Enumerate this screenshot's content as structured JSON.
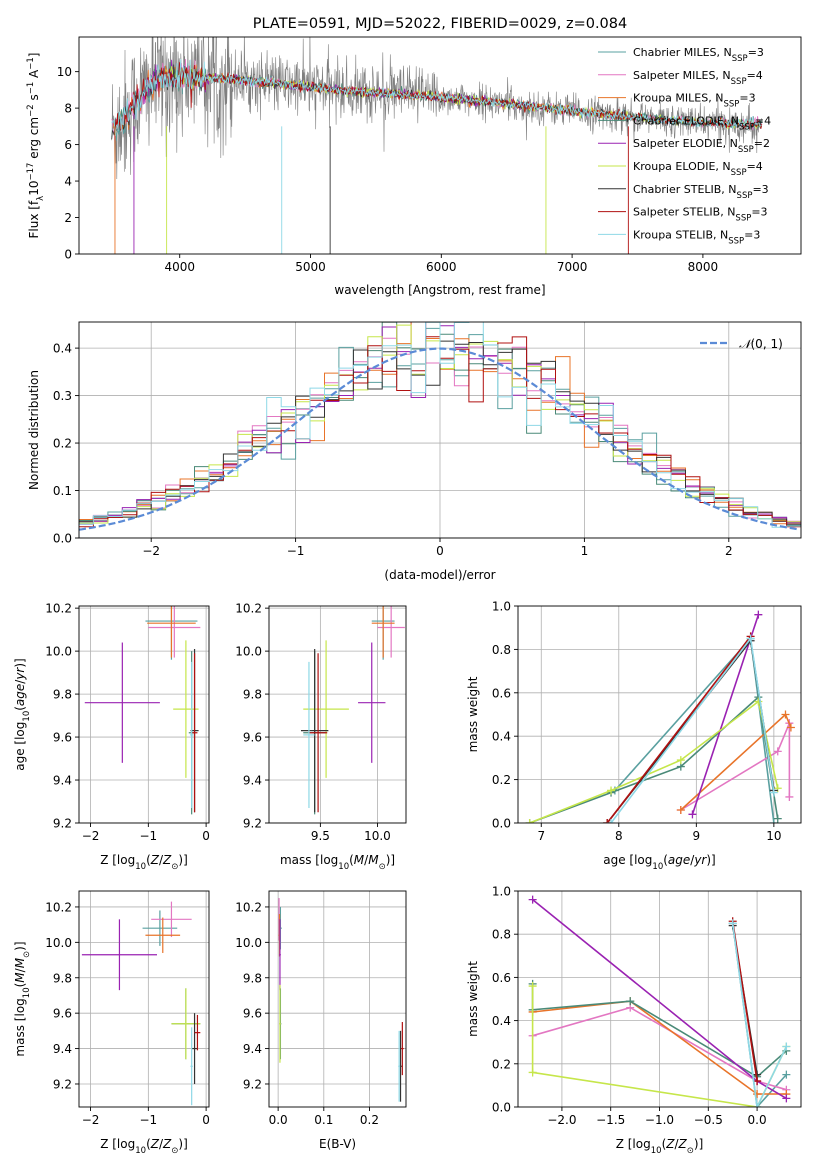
{
  "colors": {
    "Chabrier MILES": "#5aa0a0",
    "Salpeter MILES": "#e377c2",
    "Kroupa MILES": "#e8742a",
    "Chabrier ELODIE": "#4a8a78",
    "Salpeter ELODIE": "#9a22b2",
    "Kroupa ELODIE": "#c6e64a",
    "Chabrier STELIB": "#333333",
    "Salpeter STELIB": "#b01010",
    "Kroupa STELIB": "#8ed8e6",
    "gauss": "#5b8bd6",
    "grid": "#b0b0b0",
    "spectrum": "#7f7f7f"
  },
  "chart_data": [
    {
      "id": "spectrum",
      "type": "line",
      "title": "PLATE=0591, MJD=52022, FIBERID=0029, z=0.084",
      "xlabel": "wavelength [Angstrom, rest frame]",
      "ylabel": "Flux [f_λ 10^-17 erg cm^-2 s^-1 A^-1]",
      "xlim": [
        3230,
        8750
      ],
      "ylim": [
        0,
        11.9
      ],
      "xticks": [
        4000,
        5000,
        6000,
        7000,
        8000
      ],
      "yticks": [
        0,
        2,
        4,
        6,
        8,
        10
      ],
      "grid": false,
      "legend_position": "top-right",
      "legend": [
        "Chabrier MILES, N_SSP=3",
        "Salpeter MILES, N_SSP=4",
        "Kroupa MILES, N_SSP=3",
        "Chabrier ELODIE, N_SSP=4",
        "Salpeter ELODIE, N_SSP=2",
        "Kroupa ELODIE, N_SSP=4",
        "Chabrier STELIB, N_SSP=3",
        "Salpeter STELIB, N_SSP=3",
        "Kroupa STELIB, N_SSP=3"
      ],
      "continuum": {
        "x": [
          3500,
          3700,
          3800,
          3900,
          4100,
          4400,
          4800,
          5200,
          5600,
          6000,
          6400,
          6800,
          7200,
          7600,
          8000,
          8400
        ],
        "y": [
          6.8,
          8.6,
          9.4,
          9.7,
          9.7,
          9.6,
          9.3,
          9.0,
          8.8,
          8.6,
          8.3,
          8.0,
          7.7,
          7.4,
          7.2,
          7.1
        ]
      }
    },
    {
      "id": "residual-histogram",
      "type": "histogram",
      "xlabel": "(data-model)/error",
      "ylabel": "Normed distribution",
      "xlim": [
        -2.5,
        2.5
      ],
      "ylim": [
        0,
        0.455
      ],
      "xticks": [
        -2,
        -1,
        0,
        1,
        2
      ],
      "yticks": [
        0.0,
        0.1,
        0.2,
        0.3,
        0.4
      ],
      "grid": true,
      "legend_position": "top-right",
      "legend": [
        "𝒩(0, 1)"
      ],
      "bin_width": 0.1,
      "reference_curve": "normal pdf mean 0 sigma 1 (dashed)"
    },
    {
      "id": "age-vs-z",
      "type": "errorbar",
      "xlabel": "Z [log10(Z/Z⊙)]",
      "ylabel": "age [log10(age/yr)]",
      "xlim": [
        -2.2,
        0.05
      ],
      "ylim": [
        9.2,
        10.21
      ],
      "xticks": [
        -2,
        -1,
        0
      ],
      "yticks": [
        9.2,
        9.4,
        9.6,
        9.8,
        10.0,
        10.2
      ],
      "grid": true,
      "points": [
        {
          "model": "Chabrier MILES",
          "x": -0.6,
          "xerr": 0.45,
          "y": 10.14,
          "yerr": 0.18
        },
        {
          "model": "Salpeter MILES",
          "x": -0.55,
          "xerr": 0.45,
          "y": 10.11,
          "yerr": 0.14
        },
        {
          "model": "Kroupa MILES",
          "x": -0.6,
          "xerr": 0.42,
          "y": 10.13,
          "yerr": 0.16
        },
        {
          "model": "Chabrier ELODIE",
          "x": -0.25,
          "xerr": 0.05,
          "y": 9.62,
          "yerr": 0.38
        },
        {
          "model": "Salpeter ELODIE",
          "x": -1.45,
          "xerr": 0.65,
          "y": 9.76,
          "yerr": 0.28
        },
        {
          "model": "Kroupa ELODIE",
          "x": -0.35,
          "xerr": 0.22,
          "y": 9.73,
          "yerr": 0.32
        },
        {
          "model": "Chabrier STELIB",
          "x": -0.2,
          "xerr": 0.07,
          "y": 9.63,
          "yerr": 0.38
        },
        {
          "model": "Salpeter STELIB",
          "x": -0.2,
          "xerr": 0.05,
          "y": 9.62,
          "yerr": 0.37
        },
        {
          "model": "Kroupa STELIB",
          "x": -0.25,
          "xerr": 0.03,
          "y": 9.61,
          "yerr": 0.34
        }
      ]
    },
    {
      "id": "age-vs-mass",
      "type": "errorbar",
      "xlabel": "mass [log10(M/M⊙)]",
      "ylabel": "",
      "xlim": [
        9.05,
        10.25
      ],
      "ylim": [
        9.2,
        10.21
      ],
      "xticks": [
        9.5,
        10.0
      ],
      "yticks": [
        9.2,
        9.4,
        9.6,
        9.8,
        10.0,
        10.2
      ],
      "grid": true,
      "points": [
        {
          "model": "Chabrier MILES",
          "x": 10.05,
          "xerr": 0.1,
          "y": 10.14,
          "yerr": 0.18
        },
        {
          "model": "Salpeter MILES",
          "x": 10.12,
          "xerr": 0.12,
          "y": 10.11,
          "yerr": 0.14
        },
        {
          "model": "Kroupa MILES",
          "x": 10.05,
          "xerr": 0.1,
          "y": 10.13,
          "yerr": 0.16
        },
        {
          "model": "Chabrier ELODIE",
          "x": 9.45,
          "xerr": 0.1,
          "y": 9.62,
          "yerr": 0.38
        },
        {
          "model": "Salpeter ELODIE",
          "x": 9.95,
          "xerr": 0.12,
          "y": 9.76,
          "yerr": 0.28
        },
        {
          "model": "Kroupa ELODIE",
          "x": 9.55,
          "xerr": 0.2,
          "y": 9.73,
          "yerr": 0.32
        },
        {
          "model": "Chabrier STELIB",
          "x": 9.45,
          "xerr": 0.12,
          "y": 9.63,
          "yerr": 0.38
        },
        {
          "model": "Salpeter STELIB",
          "x": 9.48,
          "xerr": 0.08,
          "y": 9.62,
          "yerr": 0.37
        },
        {
          "model": "Kroupa STELIB",
          "x": 9.4,
          "xerr": 0.05,
          "y": 9.61,
          "yerr": 0.34
        }
      ]
    },
    {
      "id": "mass-weight-vs-age",
      "type": "line",
      "xlabel": "age [log10(age/yr)]",
      "ylabel": "mass weight",
      "xlim": [
        6.7,
        10.35
      ],
      "ylim": [
        0,
        1.0
      ],
      "xticks": [
        7,
        8,
        9,
        10
      ],
      "yticks": [
        0.0,
        0.2,
        0.4,
        0.6,
        0.8,
        1.0
      ],
      "grid": true,
      "series": [
        {
          "model": "Chabrier MILES",
          "x": [
            7.95,
            9.7,
            10.0
          ],
          "y": [
            0.15,
            0.85,
            0.0
          ]
        },
        {
          "model": "Salpeter MILES",
          "x": [
            8.8,
            10.05,
            10.2,
            10.2
          ],
          "y": [
            0.06,
            0.33,
            0.46,
            0.12
          ]
        },
        {
          "model": "Kroupa MILES",
          "x": [
            8.8,
            10.15,
            10.22
          ],
          "y": [
            0.06,
            0.5,
            0.44
          ]
        },
        {
          "model": "Chabrier ELODIE",
          "x": [
            6.85,
            7.9,
            8.8,
            9.8,
            10.05
          ],
          "y": [
            0.0,
            0.14,
            0.26,
            0.58,
            0.02
          ]
        },
        {
          "model": "Salpeter ELODIE",
          "x": [
            8.95,
            9.8
          ],
          "y": [
            0.04,
            0.96
          ]
        },
        {
          "model": "Kroupa ELODIE",
          "x": [
            6.85,
            7.9,
            8.8,
            9.8,
            10.05
          ],
          "y": [
            0.0,
            0.15,
            0.29,
            0.56,
            0.16
          ]
        },
        {
          "model": "Chabrier STELIB",
          "x": [
            7.85,
            9.7,
            10.0
          ],
          "y": [
            0.0,
            0.84,
            0.15
          ]
        },
        {
          "model": "Salpeter STELIB",
          "x": [
            7.85,
            9.7
          ],
          "y": [
            0.0,
            0.86
          ]
        },
        {
          "model": "Kroupa STELIB",
          "x": [
            7.9,
            9.7,
            10.0
          ],
          "y": [
            0.0,
            0.85,
            0.14
          ]
        }
      ]
    },
    {
      "id": "mass-vs-z",
      "type": "errorbar",
      "xlabel": "Z [log10(Z/Z⊙)]",
      "ylabel": "mass [log10(M/M⊙)]",
      "xlim": [
        -2.2,
        0.05
      ],
      "ylim": [
        9.07,
        10.29
      ],
      "xticks": [
        -2,
        -1,
        0
      ],
      "yticks": [
        9.2,
        9.4,
        9.6,
        9.8,
        10.0,
        10.2
      ],
      "grid": true,
      "points": [
        {
          "model": "Chabrier MILES",
          "x": -0.8,
          "xerr": 0.3,
          "y": 10.08,
          "yerr": 0.1
        },
        {
          "model": "Salpeter MILES",
          "x": -0.6,
          "xerr": 0.35,
          "y": 10.13,
          "yerr": 0.1
        },
        {
          "model": "Kroupa MILES",
          "x": -0.75,
          "xerr": 0.3,
          "y": 10.04,
          "yerr": 0.1
        },
        {
          "model": "Chabrier ELODIE",
          "x": -0.35,
          "xerr": 0.25,
          "y": 9.54,
          "yerr": 0.2
        },
        {
          "model": "Salpeter ELODIE",
          "x": -1.5,
          "xerr": 0.65,
          "y": 9.93,
          "yerr": 0.2
        },
        {
          "model": "Kroupa ELODIE",
          "x": -0.35,
          "xerr": 0.25,
          "y": 9.54,
          "yerr": 0.2
        },
        {
          "model": "Chabrier STELIB",
          "x": -0.2,
          "xerr": 0.05,
          "y": 9.4,
          "yerr": 0.2
        },
        {
          "model": "Salpeter STELIB",
          "x": -0.15,
          "xerr": 0.05,
          "y": 9.49,
          "yerr": 0.1
        },
        {
          "model": "Kroupa STELIB",
          "x": -0.25,
          "xerr": 0.02,
          "y": 9.3,
          "yerr": 0.22
        }
      ]
    },
    {
      "id": "mass-vs-ebv",
      "type": "errorbar",
      "xlabel": "E(B-V)",
      "ylabel": "",
      "xlim": [
        -0.02,
        0.28
      ],
      "ylim": [
        9.07,
        10.29
      ],
      "xticks": [
        0.0,
        0.1,
        0.2
      ],
      "yticks": [
        9.2,
        9.4,
        9.6,
        9.8,
        10.0,
        10.2
      ],
      "grid": true,
      "points": [
        {
          "model": "Chabrier MILES",
          "x": 0.005,
          "xerr": 0.003,
          "y": 10.08,
          "yerr": 0.12
        },
        {
          "model": "Salpeter MILES",
          "x": 0.002,
          "xerr": 0.002,
          "y": 10.13,
          "yerr": 0.12
        },
        {
          "model": "Kroupa MILES",
          "x": 0.003,
          "xerr": 0.002,
          "y": 10.04,
          "yerr": 0.12
        },
        {
          "model": "Chabrier ELODIE",
          "x": 0.005,
          "xerr": 0.002,
          "y": 9.54,
          "yerr": 0.2
        },
        {
          "model": "Salpeter ELODIE",
          "x": 0.004,
          "xerr": 0.002,
          "y": 9.93,
          "yerr": 0.2
        },
        {
          "model": "Kroupa ELODIE",
          "x": 0.004,
          "xerr": 0.002,
          "y": 9.54,
          "yerr": 0.22
        },
        {
          "model": "Chabrier STELIB",
          "x": 0.268,
          "xerr": 0.003,
          "y": 9.3,
          "yerr": 0.2
        },
        {
          "model": "Salpeter STELIB",
          "x": 0.272,
          "xerr": 0.003,
          "y": 9.4,
          "yerr": 0.15
        },
        {
          "model": "Kroupa STELIB",
          "x": 0.265,
          "xerr": 0.002,
          "y": 9.3,
          "yerr": 0.2
        }
      ]
    },
    {
      "id": "mass-weight-vs-z",
      "type": "line",
      "xlabel": "Z [log10(Z/Z⊙)]",
      "ylabel": "mass weight",
      "xlim": [
        -2.45,
        0.45
      ],
      "ylim": [
        0,
        1.0
      ],
      "xticks": [
        -2.0,
        -1.5,
        -1.0,
        -0.5,
        0.0
      ],
      "yticks": [
        0.0,
        0.2,
        0.4,
        0.6,
        0.8,
        1.0
      ],
      "grid": true,
      "series": [
        {
          "model": "Chabrier MILES",
          "x": [
            -0.25,
            0.0,
            0.3
          ],
          "y": [
            0.85,
            0.0,
            0.15
          ]
        },
        {
          "model": "Salpeter MILES",
          "x": [
            -2.3,
            -1.3,
            0.0,
            0.3
          ],
          "y": [
            0.33,
            0.46,
            0.12,
            0.08
          ]
        },
        {
          "model": "Kroupa MILES",
          "x": [
            -2.3,
            -1.3,
            0.0,
            0.3
          ],
          "y": [
            0.44,
            0.49,
            0.06,
            0.06
          ]
        },
        {
          "model": "Chabrier ELODIE",
          "x": [
            -2.3,
            -2.3,
            -1.3,
            0.0,
            0.3
          ],
          "y": [
            0.57,
            0.45,
            0.49,
            0.14,
            0.26
          ]
        },
        {
          "model": "Salpeter ELODIE",
          "x": [
            -2.3,
            0.0,
            0.3
          ],
          "y": [
            0.96,
            0.12,
            0.04
          ]
        },
        {
          "model": "Kroupa ELODIE",
          "x": [
            -2.3,
            -2.3,
            0.0,
            0.3
          ],
          "y": [
            0.56,
            0.16,
            0.0,
            0.28
          ]
        },
        {
          "model": "Chabrier STELIB",
          "x": [
            -0.25,
            0.0
          ],
          "y": [
            0.84,
            0.15
          ]
        },
        {
          "model": "Salpeter STELIB",
          "x": [
            -0.25,
            0.0
          ],
          "y": [
            0.86,
            0.12
          ]
        },
        {
          "model": "Kroupa STELIB",
          "x": [
            -0.25,
            0.0,
            0.3
          ],
          "y": [
            0.85,
            0.0,
            0.28
          ]
        }
      ]
    }
  ]
}
